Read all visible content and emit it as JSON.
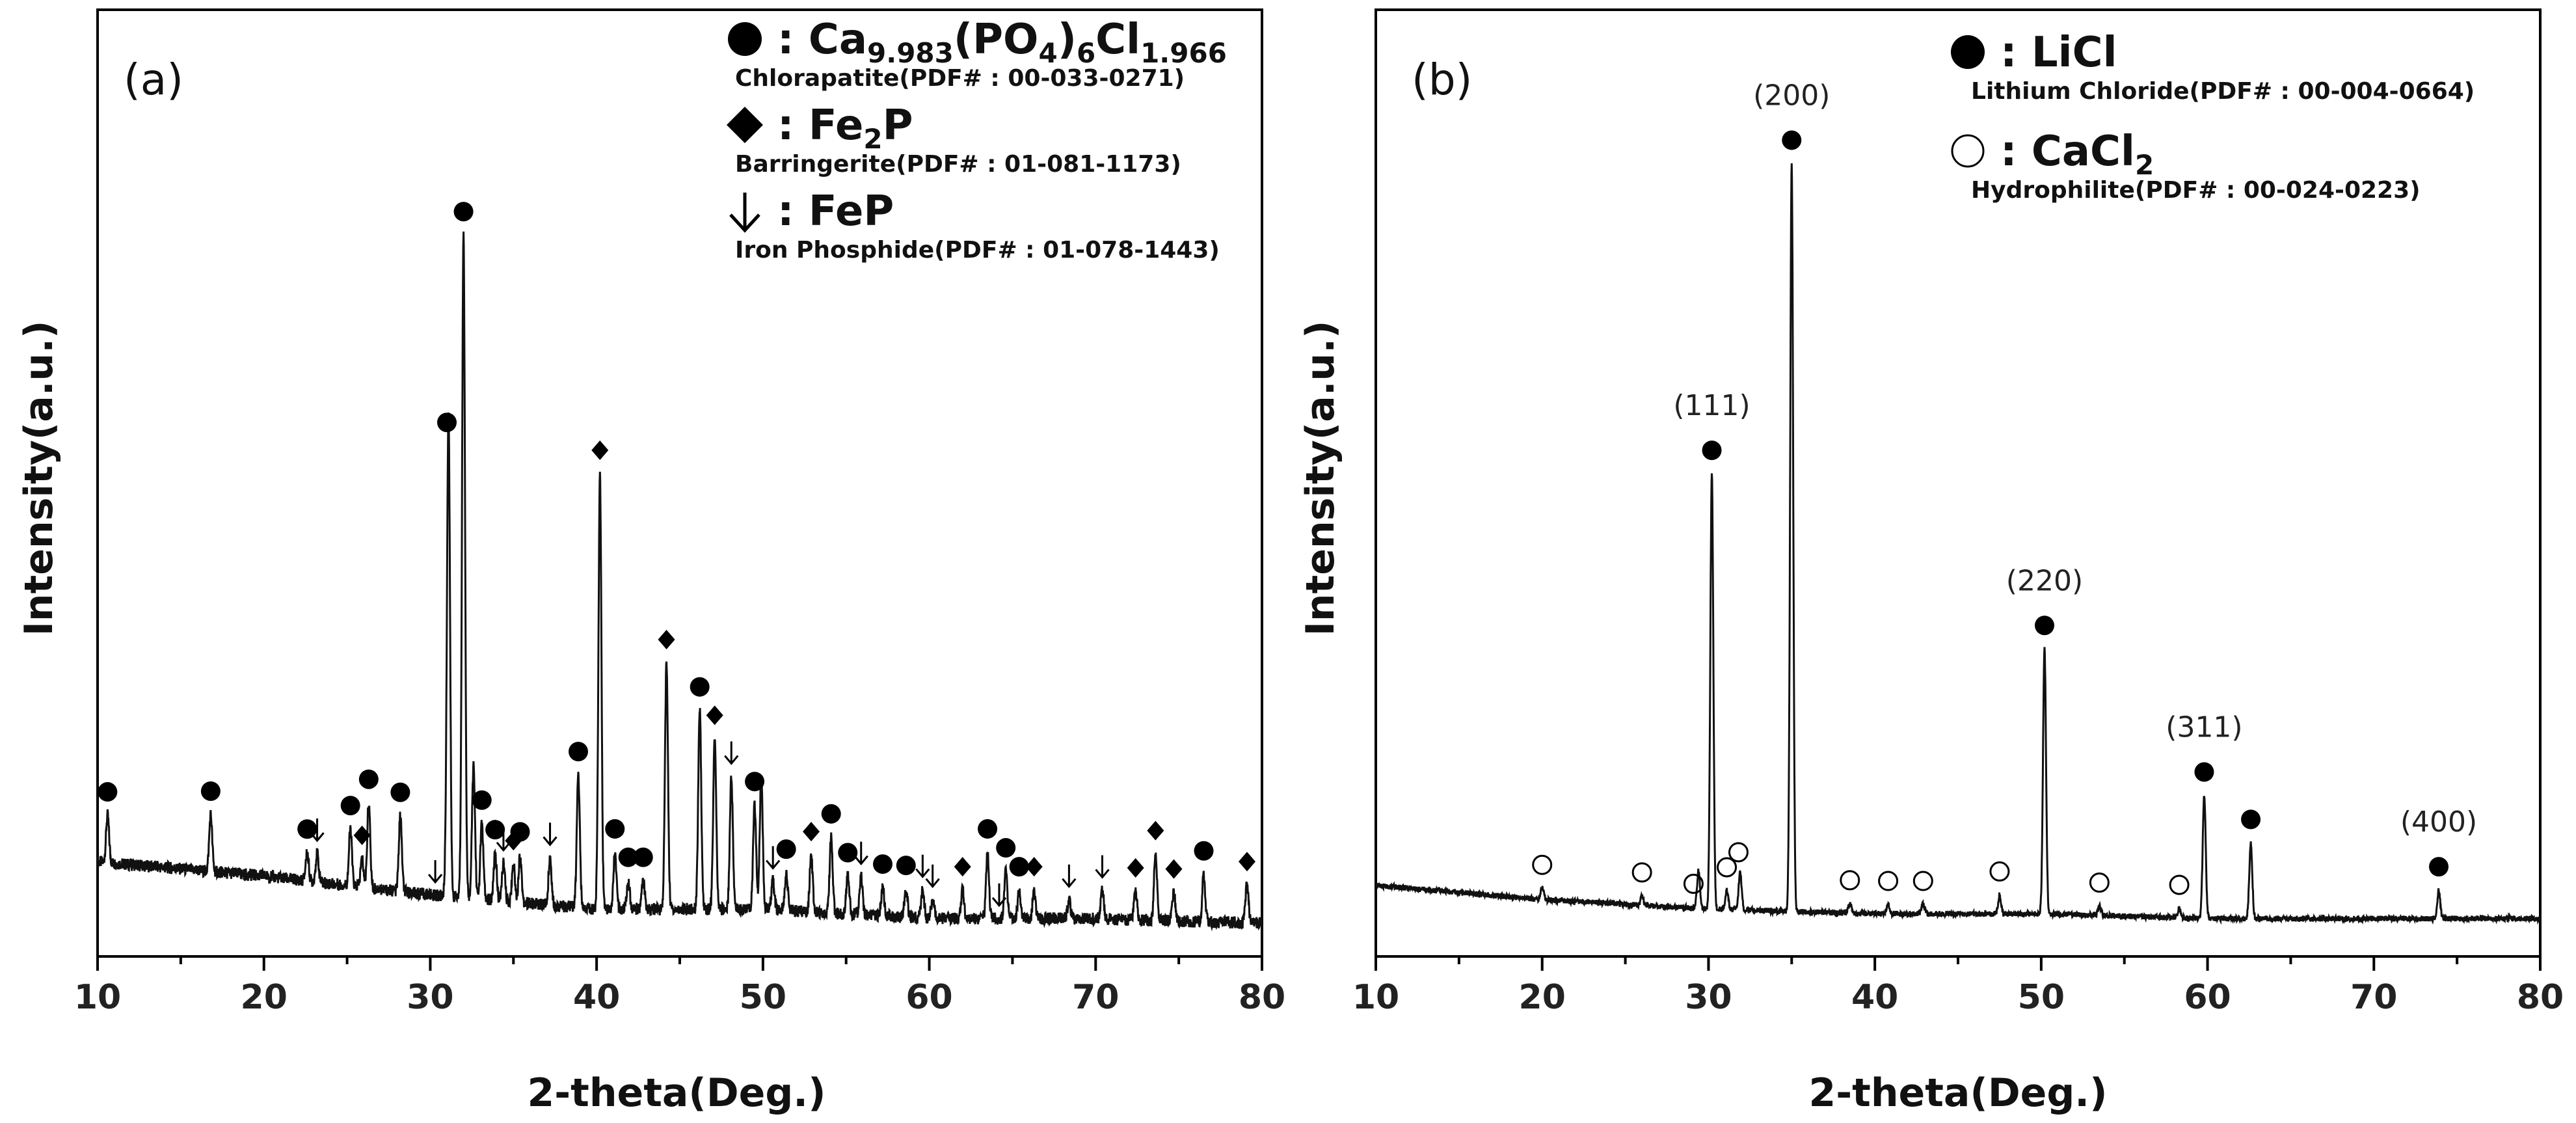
{
  "chart_data": [
    {
      "type": "line",
      "panel_label": "(a)",
      "xlabel": "2-theta(Deg.)",
      "ylabel": "Intensity(a.u.)",
      "xlim": [
        10,
        80
      ],
      "xticks": [
        10,
        20,
        30,
        40,
        50,
        60,
        70,
        80
      ],
      "yticks": "none",
      "grid": false,
      "legend_position": "top-right",
      "legend": [
        {
          "marker": "filled-circle",
          "formula": "Ca9.983(PO4)6Cl1.966",
          "formula_parts": [
            "Ca",
            "9.983",
            "(PO",
            "4",
            ")",
            "6",
            "Cl",
            "1.966"
          ],
          "name": "Chlorapatite(PDF# : 00-033-0271)"
        },
        {
          "marker": "filled-diamond",
          "formula": "Fe2P",
          "formula_parts": [
            "Fe",
            "2",
            "P"
          ],
          "name": "Barringerite(PDF# : 01-081-1173)"
        },
        {
          "marker": "down-arrow",
          "formula": "FeP",
          "formula_parts": [
            "FeP"
          ],
          "name": "Iron Phosphide(PDF# : 01-078-1443)"
        }
      ],
      "baseline": [
        [
          10,
          0.1
        ],
        [
          20,
          0.085
        ],
        [
          30,
          0.065
        ],
        [
          40,
          0.05
        ],
        [
          50,
          0.05
        ],
        [
          60,
          0.04
        ],
        [
          70,
          0.04
        ],
        [
          80,
          0.035
        ]
      ],
      "peaks": [
        {
          "x": 10.6,
          "h": 0.05
        },
        {
          "x": 16.8,
          "h": 0.06
        },
        {
          "x": 22.6,
          "h": 0.03
        },
        {
          "x": 23.2,
          "h": 0.03
        },
        {
          "x": 25.2,
          "h": 0.06
        },
        {
          "x": 25.9,
          "h": 0.03
        },
        {
          "x": 26.3,
          "h": 0.09
        },
        {
          "x": 28.2,
          "h": 0.08
        },
        {
          "x": 31.0,
          "h": 0.04
        },
        {
          "x": 31.1,
          "h": 0.49
        },
        {
          "x": 32.0,
          "h": 0.7
        },
        {
          "x": 32.6,
          "h": 0.14
        },
        {
          "x": 33.1,
          "h": 0.08
        },
        {
          "x": 33.9,
          "h": 0.05
        },
        {
          "x": 34.4,
          "h": 0.04
        },
        {
          "x": 35.0,
          "h": 0.04
        },
        {
          "x": 35.4,
          "h": 0.05
        },
        {
          "x": 37.2,
          "h": 0.05
        },
        {
          "x": 38.9,
          "h": 0.14
        },
        {
          "x": 40.2,
          "h": 0.46
        },
        {
          "x": 41.1,
          "h": 0.06
        },
        {
          "x": 41.9,
          "h": 0.03
        },
        {
          "x": 42.8,
          "h": 0.03
        },
        {
          "x": 44.2,
          "h": 0.26
        },
        {
          "x": 46.2,
          "h": 0.21
        },
        {
          "x": 47.1,
          "h": 0.18
        },
        {
          "x": 48.1,
          "h": 0.14
        },
        {
          "x": 49.5,
          "h": 0.11
        },
        {
          "x": 49.9,
          "h": 0.14
        },
        {
          "x": 50.6,
          "h": 0.03
        },
        {
          "x": 51.4,
          "h": 0.04
        },
        {
          "x": 52.9,
          "h": 0.06
        },
        {
          "x": 54.1,
          "h": 0.08
        },
        {
          "x": 55.1,
          "h": 0.04
        },
        {
          "x": 55.9,
          "h": 0.04
        },
        {
          "x": 57.2,
          "h": 0.03
        },
        {
          "x": 58.6,
          "h": 0.03
        },
        {
          "x": 59.6,
          "h": 0.03
        },
        {
          "x": 60.2,
          "h": 0.02
        },
        {
          "x": 62.0,
          "h": 0.03
        },
        {
          "x": 63.5,
          "h": 0.07
        },
        {
          "x": 64.6,
          "h": 0.05
        },
        {
          "x": 65.4,
          "h": 0.03
        },
        {
          "x": 66.3,
          "h": 0.03
        },
        {
          "x": 68.4,
          "h": 0.02
        },
        {
          "x": 70.4,
          "h": 0.03
        },
        {
          "x": 72.4,
          "h": 0.03
        },
        {
          "x": 73.6,
          "h": 0.07
        },
        {
          "x": 74.7,
          "h": 0.03
        },
        {
          "x": 76.5,
          "h": 0.05
        },
        {
          "x": 79.1,
          "h": 0.04
        }
      ],
      "markers": [
        {
          "phase": "Ca9.983(PO4)6Cl1.966",
          "symbol": "filled-circle",
          "x": [
            10.6,
            16.8,
            22.6,
            25.2,
            26.3,
            28.2,
            31.0,
            32.0,
            33.1,
            33.9,
            35.4,
            38.9,
            41.1,
            41.9,
            42.8,
            46.2,
            49.5,
            51.4,
            54.1,
            55.1,
            57.2,
            58.6,
            63.5,
            64.6,
            65.4,
            76.5
          ]
        },
        {
          "phase": "Fe2P",
          "symbol": "filled-diamond",
          "x": [
            25.9,
            35.0,
            40.2,
            44.2,
            47.1,
            52.9,
            55.1,
            62.0,
            66.3,
            72.4,
            73.6,
            74.7,
            79.1
          ]
        },
        {
          "phase": "FeP",
          "symbol": "down-arrow",
          "x": [
            23.2,
            30.3,
            34.4,
            37.2,
            48.1,
            50.6,
            55.9,
            59.6,
            60.2,
            64.2,
            68.4,
            70.4
          ]
        }
      ]
    },
    {
      "type": "line",
      "panel_label": "(b)",
      "xlabel": "2-theta(Deg.)",
      "ylabel": "Intensity(a.u.)",
      "xlim": [
        10,
        80
      ],
      "xticks": [
        10,
        20,
        30,
        40,
        50,
        60,
        70,
        80
      ],
      "yticks": "none",
      "grid": false,
      "legend_position": "top-right",
      "legend": [
        {
          "marker": "filled-circle",
          "formula": "LiCl",
          "formula_parts": [
            "LiCl"
          ],
          "name": "Lithium Chloride(PDF# : 00-004-0664)"
        },
        {
          "marker": "open-circle",
          "formula": "CaCl2",
          "formula_parts": [
            "CaCl",
            "2"
          ],
          "name": "Hydrophilite(PDF# : 00-024-0223)"
        }
      ],
      "baseline": [
        [
          10,
          0.075
        ],
        [
          20,
          0.06
        ],
        [
          30,
          0.05
        ],
        [
          40,
          0.045
        ],
        [
          50,
          0.045
        ],
        [
          60,
          0.04
        ],
        [
          70,
          0.04
        ],
        [
          80,
          0.04
        ]
      ],
      "peaks": [
        {
          "x": 20.0,
          "h": 0.012
        },
        {
          "x": 26.0,
          "h": 0.01
        },
        {
          "x": 29.4,
          "h": 0.04
        },
        {
          "x": 30.2,
          "h": 0.46
        },
        {
          "x": 31.1,
          "h": 0.02
        },
        {
          "x": 31.9,
          "h": 0.04
        },
        {
          "x": 35.0,
          "h": 0.79
        },
        {
          "x": 38.5,
          "h": 0.01
        },
        {
          "x": 40.8,
          "h": 0.01
        },
        {
          "x": 42.9,
          "h": 0.01
        },
        {
          "x": 47.5,
          "h": 0.02
        },
        {
          "x": 50.2,
          "h": 0.28
        },
        {
          "x": 53.5,
          "h": 0.01
        },
        {
          "x": 58.3,
          "h": 0.01
        },
        {
          "x": 59.8,
          "h": 0.13
        },
        {
          "x": 62.6,
          "h": 0.08
        },
        {
          "x": 73.9,
          "h": 0.03
        }
      ],
      "markers": [
        {
          "phase": "LiCl",
          "symbol": "filled-circle",
          "x": [
            30.2,
            35.0,
            50.2,
            59.8,
            62.6,
            73.9
          ]
        },
        {
          "phase": "CaCl2",
          "symbol": "open-circle",
          "x": [
            20.0,
            26.0,
            29.1,
            31.1,
            31.8,
            38.5,
            40.8,
            42.9,
            47.5,
            53.5,
            58.3
          ]
        }
      ],
      "hkl_labels": [
        {
          "x": 30.2,
          "text": "(111)"
        },
        {
          "x": 35.0,
          "text": "(200)"
        },
        {
          "x": 50.2,
          "text": "(220)"
        },
        {
          "x": 59.8,
          "text": "(311)"
        },
        {
          "x": 73.9,
          "text": "(400)"
        }
      ]
    }
  ]
}
